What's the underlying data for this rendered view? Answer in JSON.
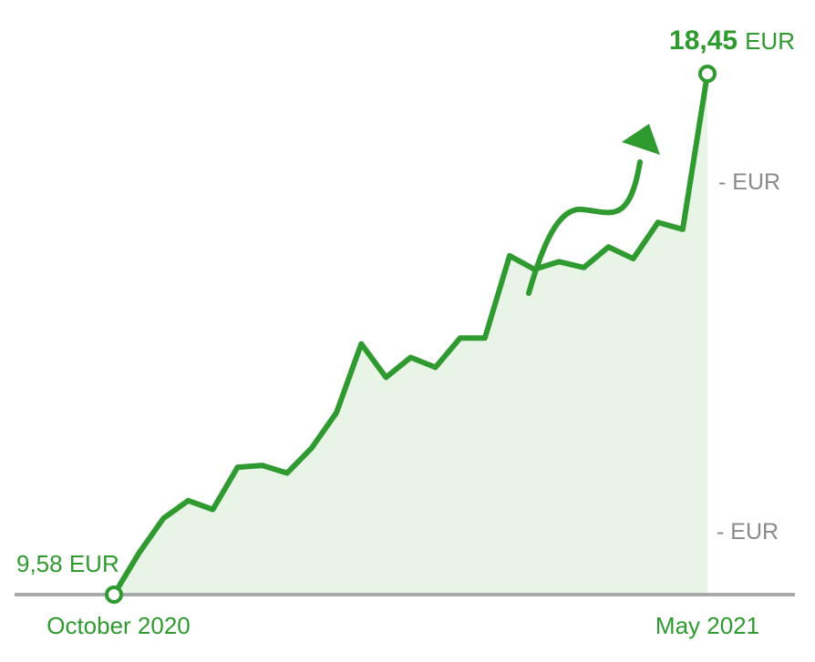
{
  "chart_data": {
    "type": "area",
    "x_labels": [
      "October 2020",
      "May 2021"
    ],
    "start_label": "9,58 EUR",
    "end_value_label": "18,45",
    "end_unit_label": "EUR",
    "y_axis_labels": [
      "- EUR",
      "- EUR"
    ],
    "values": [
      9.58,
      10.28,
      10.88,
      11.18,
      11.03,
      11.75,
      11.78,
      11.65,
      12.08,
      12.68,
      13.85,
      13.28,
      13.62,
      13.45,
      13.95,
      13.95,
      15.35,
      15.12,
      15.25,
      15.15,
      15.5,
      15.3,
      15.92,
      15.8,
      18.45
    ],
    "ylim": [
      9.58,
      18.45
    ],
    "trend_arrow": "up",
    "colors": {
      "line": "#2f9a2f",
      "fill": "#e8f5e6",
      "axis": "#a8a8a8",
      "gray_text": "#8a8a8a"
    }
  }
}
